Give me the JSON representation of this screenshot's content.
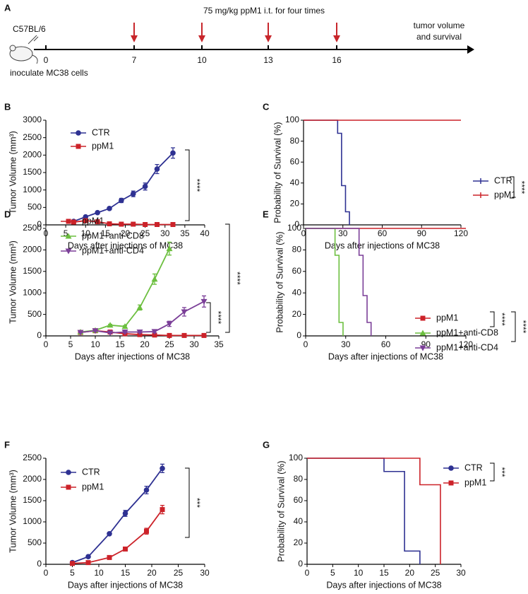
{
  "timeline": {
    "label": "A",
    "title": "75 mg/kg ppM1 i.t. for four times",
    "subject": "C57BL/6",
    "event": "inoculate MC38 cells",
    "ticks": [
      0,
      7,
      10,
      13,
      16
    ],
    "end_label": [
      "tumor volume",
      "and survival"
    ]
  },
  "chart_data": [
    {
      "type": "line",
      "panel": "B",
      "xlabel": "Days after  injections of MC38",
      "ylabel": "Tumor Volume (mm³)",
      "xlim": [
        0,
        40
      ],
      "xticks": [
        0,
        5,
        10,
        15,
        20,
        25,
        30,
        35,
        40
      ],
      "ylim": [
        0,
        3000
      ],
      "yticks": [
        0,
        500,
        1000,
        1500,
        2000,
        2500,
        3000
      ],
      "annotations": [
        "****"
      ],
      "series": [
        {
          "name": "CTR",
          "color": "#2e3192",
          "marker": "circle",
          "x": [
            7,
            10,
            13,
            16,
            19,
            22,
            25,
            28,
            32
          ],
          "values": [
            100,
            230,
            350,
            470,
            700,
            890,
            1100,
            1600,
            2060
          ],
          "errors": [
            20,
            30,
            30,
            40,
            60,
            80,
            100,
            130,
            150
          ]
        },
        {
          "name": "ppM1",
          "color": "#cc2229",
          "marker": "square",
          "x": [
            7,
            10,
            13,
            16,
            19,
            22,
            25,
            28,
            32
          ],
          "values": [
            80,
            120,
            90,
            30,
            20,
            20,
            10,
            10,
            10
          ],
          "errors": [
            10,
            10,
            10,
            5,
            5,
            5,
            5,
            5,
            5
          ]
        }
      ]
    },
    {
      "type": "step",
      "panel": "C",
      "xlabel": "Days after  injections of MC38",
      "ylabel": "Probability of Survival (%)",
      "xlim": [
        0,
        120
      ],
      "xticks": [
        0,
        30,
        60,
        90,
        120
      ],
      "ylim": [
        0,
        100
      ],
      "yticks": [
        0,
        20,
        40,
        60,
        80,
        100
      ],
      "annotations": [
        "****"
      ],
      "series": [
        {
          "name": "CTR",
          "color": "#2e3192",
          "marker": "tick",
          "x": [
            0,
            26,
            29,
            32,
            35
          ],
          "values": [
            100,
            87.5,
            37.5,
            12.5,
            0
          ]
        },
        {
          "name": "ppM1",
          "color": "#cc2229",
          "marker": "tick",
          "x": [
            0,
            120
          ],
          "values": [
            100,
            100
          ]
        }
      ]
    },
    {
      "type": "line",
      "panel": "D",
      "xlabel": "Days after  injections of MC38",
      "ylabel": "Tumor Volume (mm³)",
      "xlim": [
        0,
        35
      ],
      "xticks": [
        0,
        5,
        10,
        15,
        20,
        25,
        30,
        35
      ],
      "ylim": [
        0,
        2500
      ],
      "yticks": [
        0,
        500,
        1000,
        1500,
        2000,
        2500
      ],
      "annotations": [
        "****",
        "****"
      ],
      "series": [
        {
          "name": "ppM1",
          "color": "#cc2229",
          "marker": "square",
          "x": [
            7,
            10,
            13,
            16,
            19,
            22,
            25,
            28,
            32
          ],
          "values": [
            80,
            120,
            90,
            50,
            30,
            20,
            10,
            10,
            10
          ],
          "errors": [
            10,
            10,
            10,
            10,
            5,
            5,
            5,
            5,
            5
          ]
        },
        {
          "name": "ppM1+anti-CD8",
          "color": "#6cbf3f",
          "marker": "triangle",
          "x": [
            7,
            10,
            13,
            16,
            19,
            22,
            25
          ],
          "values": [
            90,
            130,
            250,
            220,
            660,
            1320,
            2030
          ],
          "errors": [
            10,
            10,
            20,
            20,
            60,
            120,
            150
          ]
        },
        {
          "name": "ppM1+anti-CD4",
          "color": "#7b3f98",
          "marker": "triangle-down",
          "x": [
            7,
            10,
            13,
            16,
            19,
            22,
            25,
            28,
            32
          ],
          "values": [
            80,
            120,
            70,
            90,
            90,
            100,
            280,
            560,
            800
          ],
          "errors": [
            10,
            10,
            10,
            20,
            20,
            30,
            60,
            100,
            130
          ]
        }
      ]
    },
    {
      "type": "step",
      "panel": "E",
      "xlabel": "Days after  injections of MC38",
      "ylabel": "Probability of Survival (%)",
      "xlim": [
        0,
        120
      ],
      "xticks": [
        0,
        30,
        60,
        90,
        120
      ],
      "ylim": [
        0,
        100
      ],
      "yticks": [
        0,
        20,
        40,
        60,
        80,
        100
      ],
      "annotations": [
        "****",
        "****"
      ],
      "series": [
        {
          "name": "ppM1",
          "color": "#cc2229",
          "marker": "square",
          "x": [
            0,
            120
          ],
          "values": [
            100,
            100
          ]
        },
        {
          "name": "ppM1+anti-CD8",
          "color": "#6cbf3f",
          "marker": "triangle",
          "x": [
            0,
            22,
            25,
            28
          ],
          "values": [
            100,
            75,
            12.5,
            0
          ]
        },
        {
          "name": "ppM1+anti-CD4",
          "color": "#7b3f98",
          "marker": "triangle-down",
          "x": [
            0,
            40,
            43,
            46,
            49
          ],
          "values": [
            100,
            75,
            37.5,
            12.5,
            0
          ]
        }
      ]
    },
    {
      "type": "line",
      "panel": "F",
      "xlabel": "Days after  injections of MC38",
      "ylabel": "Tumor Volume (mm³)",
      "xlim": [
        0,
        30
      ],
      "xticks": [
        0,
        5,
        10,
        15,
        20,
        25,
        30
      ],
      "ylim": [
        0,
        2500
      ],
      "yticks": [
        0,
        500,
        1000,
        1500,
        2000,
        2500
      ],
      "annotations": [
        "***"
      ],
      "series": [
        {
          "name": "CTR",
          "color": "#2e3192",
          "marker": "circle",
          "x": [
            5,
            8,
            12,
            15,
            19,
            22
          ],
          "values": [
            40,
            180,
            720,
            1200,
            1750,
            2260
          ],
          "errors": [
            10,
            20,
            30,
            70,
            90,
            100
          ]
        },
        {
          "name": "ppM1",
          "color": "#cc2229",
          "marker": "square",
          "x": [
            5,
            8,
            12,
            15,
            19,
            22
          ],
          "values": [
            20,
            40,
            160,
            360,
            780,
            1290
          ],
          "errors": [
            5,
            10,
            20,
            30,
            70,
            100
          ]
        }
      ]
    },
    {
      "type": "step",
      "panel": "G",
      "xlabel": "Days after  injections of MC38",
      "ylabel": "Probability of Survival (%)",
      "xlim": [
        0,
        30
      ],
      "xticks": [
        0,
        5,
        10,
        15,
        20,
        25,
        30
      ],
      "ylim": [
        0,
        100
      ],
      "yticks": [
        0,
        20,
        40,
        60,
        80,
        100
      ],
      "annotations": [
        "***"
      ],
      "series": [
        {
          "name": "CTR",
          "color": "#2e3192",
          "marker": "circle",
          "x": [
            0,
            15,
            19,
            22
          ],
          "values": [
            100,
            87.5,
            12.5,
            0
          ]
        },
        {
          "name": "ppM1",
          "color": "#cc2229",
          "marker": "square",
          "x": [
            0,
            22,
            26
          ],
          "values": [
            100,
            75,
            0
          ]
        }
      ]
    }
  ]
}
